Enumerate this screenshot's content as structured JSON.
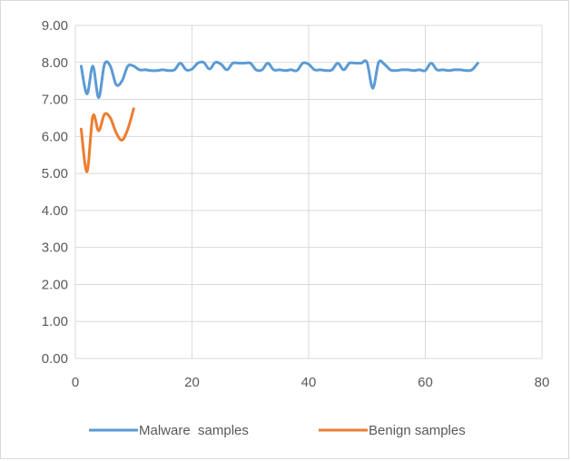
{
  "chart_data": {
    "type": "line",
    "title": "",
    "xlabel": "",
    "ylabel": "",
    "xlim": [
      0,
      80
    ],
    "ylim": [
      0,
      9
    ],
    "x_ticks": [
      "0",
      "20",
      "40",
      "60",
      "80"
    ],
    "y_ticks": [
      "0.00",
      "1.00",
      "2.00",
      "3.00",
      "4.00",
      "5.00",
      "6.00",
      "7.00",
      "8.00",
      "9.00"
    ],
    "grid": true,
    "legend_position": "bottom",
    "series": [
      {
        "name": "Malware  samples",
        "color": "#5b9bd5",
        "x": [
          1,
          2,
          3,
          4,
          5,
          6,
          7,
          8,
          9,
          10,
          11,
          12,
          13,
          14,
          15,
          16,
          17,
          18,
          19,
          20,
          21,
          22,
          23,
          24,
          25,
          26,
          27,
          28,
          29,
          30,
          31,
          32,
          33,
          34,
          35,
          36,
          37,
          38,
          39,
          40,
          41,
          42,
          43,
          44,
          45,
          46,
          47,
          48,
          49,
          50,
          51,
          52,
          53,
          54,
          55,
          56,
          57,
          58,
          59,
          60,
          61,
          62,
          63,
          64,
          65,
          66,
          67,
          68,
          69
        ],
        "y": [
          7.9,
          7.15,
          7.9,
          7.05,
          7.95,
          7.9,
          7.4,
          7.5,
          7.9,
          7.9,
          7.8,
          7.8,
          7.78,
          7.78,
          7.8,
          7.78,
          7.8,
          7.98,
          7.8,
          7.82,
          7.98,
          8.0,
          7.82,
          8.0,
          7.95,
          7.8,
          7.98,
          7.98,
          7.98,
          7.98,
          7.8,
          7.8,
          7.98,
          7.8,
          7.8,
          7.78,
          7.8,
          7.78,
          7.98,
          7.95,
          7.8,
          7.8,
          7.78,
          7.8,
          7.98,
          7.8,
          7.98,
          7.98,
          7.98,
          8.0,
          7.3,
          8.0,
          7.95,
          7.8,
          7.78,
          7.8,
          7.8,
          7.78,
          7.8,
          7.78,
          7.98,
          7.8,
          7.8,
          7.78,
          7.8,
          7.8,
          7.78,
          7.8,
          7.98
        ]
      },
      {
        "name": "Benign samples",
        "color": "#ed7d31",
        "x": [
          1,
          2,
          3,
          4,
          5,
          6,
          7,
          8,
          9,
          10
        ],
        "y": [
          6.2,
          5.05,
          6.55,
          6.15,
          6.6,
          6.5,
          6.1,
          5.9,
          6.2,
          6.75
        ]
      }
    ]
  }
}
